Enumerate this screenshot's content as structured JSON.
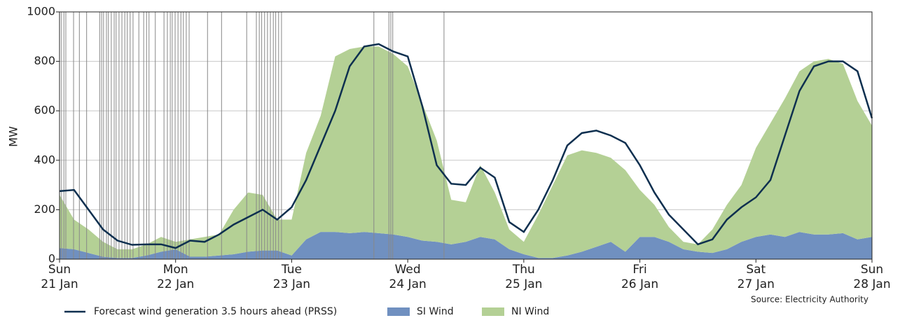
{
  "chart_data": {
    "type": "area",
    "ylabel": "MW",
    "source": "Source: Electricity Authority",
    "x": [
      0,
      3,
      6,
      9,
      12,
      15,
      18,
      21,
      24,
      27,
      30,
      33,
      36,
      39,
      42,
      45,
      48,
      51,
      54,
      57,
      60,
      63,
      66,
      69,
      72,
      75,
      78,
      81,
      84,
      87,
      90,
      93,
      96,
      99,
      102,
      105,
      108,
      111,
      114,
      117,
      120,
      123,
      126,
      129,
      132,
      135,
      138,
      141,
      144,
      147,
      150,
      153,
      156,
      159,
      162,
      165,
      168
    ],
    "series": [
      {
        "name": "Forecast wind generation 3.5 hours ahead (PRSS)",
        "type": "line",
        "color": "#0d2f4f",
        "values": [
          275,
          280,
          200,
          120,
          75,
          58,
          60,
          60,
          45,
          75,
          70,
          100,
          140,
          170,
          200,
          160,
          210,
          320,
          460,
          600,
          780,
          860,
          870,
          840,
          820,
          620,
          380,
          305,
          300,
          370,
          330,
          150,
          110,
          200,
          320,
          460,
          510,
          520,
          500,
          470,
          380,
          270,
          180,
          120,
          60,
          80,
          160,
          210,
          250,
          320,
          500,
          680,
          780,
          800,
          800,
          760,
          570
        ]
      },
      {
        "name": "SI Wind",
        "type": "area",
        "color": "#7090c0",
        "values": [
          45,
          40,
          25,
          10,
          5,
          5,
          15,
          30,
          40,
          10,
          10,
          15,
          20,
          30,
          35,
          35,
          15,
          80,
          110,
          110,
          105,
          110,
          105,
          100,
          90,
          75,
          70,
          60,
          70,
          90,
          80,
          40,
          20,
          5,
          5,
          15,
          30,
          50,
          70,
          30,
          90,
          90,
          70,
          40,
          30,
          25,
          40,
          70,
          90,
          100,
          90,
          110,
          100,
          100,
          105,
          80,
          90
        ]
      },
      {
        "name": "NI Wind",
        "type": "area",
        "color": "#b4d095",
        "values": [
          215,
          120,
          95,
          60,
          35,
          35,
          45,
          60,
          30,
          70,
          80,
          85,
          180,
          240,
          225,
          125,
          145,
          350,
          470,
          710,
          745,
          750,
          755,
          730,
          690,
          555,
          410,
          180,
          160,
          290,
          190,
          80,
          50,
          175,
          295,
          405,
          410,
          380,
          340,
          330,
          190,
          130,
          60,
          30,
          30,
          95,
          180,
          230,
          360,
          450,
          560,
          650,
          700,
          710,
          685,
          560,
          450
        ]
      }
    ],
    "event_lines": [
      0.4,
      0.9,
      1.3,
      2.9,
      4.1,
      5.6,
      8.3,
      8.7,
      9.1,
      9.7,
      10.1,
      10.7,
      11.3,
      11.7,
      12.3,
      12.9,
      13.5,
      14.0,
      14.6,
      15.2,
      16.4,
      17.4,
      18.0,
      18.5,
      19.8,
      21.6,
      22.3,
      22.9,
      23.3,
      23.9,
      24.5,
      25.1,
      25.6,
      26.2,
      26.8,
      30.6,
      33.5,
      38.7,
      40.7,
      41.3,
      41.8,
      42.4,
      43.0,
      43.6,
      44.2,
      44.7,
      45.3,
      45.9,
      65.0,
      68.1,
      68.5,
      68.9,
      79.5
    ],
    "event_line_color": "#888888",
    "xlim": [
      0,
      168
    ],
    "xticks": [
      {
        "value": 0,
        "label": "Sun\n21 Jan"
      },
      {
        "value": 24,
        "label": "Mon\n22 Jan"
      },
      {
        "value": 48,
        "label": "Tue\n23 Jan"
      },
      {
        "value": 72,
        "label": "Wed\n24 Jan"
      },
      {
        "value": 96,
        "label": "Thu\n25 Jan"
      },
      {
        "value": 120,
        "label": "Fri\n26 Jan"
      },
      {
        "value": 144,
        "label": "Sat\n27 Jan"
      },
      {
        "value": 168,
        "label": "Sun\n28 Jan"
      }
    ],
    "ylim": [
      0,
      1000
    ],
    "yticks": [
      0,
      200,
      400,
      600,
      800,
      1000
    ],
    "grid": true
  }
}
